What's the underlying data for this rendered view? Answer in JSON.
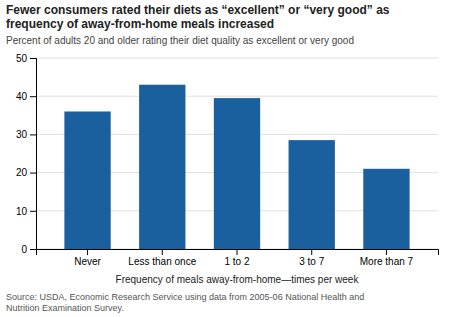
{
  "chart_data": {
    "type": "bar",
    "title": "Fewer consumers rated their diets as “excellent” or “very good” as\nfrequency of away-from-home meals increased",
    "subtitle": "Percent of adults 20 and older rating their diet quality as excellent or very good",
    "categories": [
      "Never",
      "Less than once",
      "1 to 2",
      "3 to 7",
      "More than 7"
    ],
    "values": [
      36,
      43,
      39.5,
      28.5,
      21
    ],
    "color": "#1A5F9E",
    "ylim": [
      0,
      50
    ],
    "yticks": [
      0,
      10,
      20,
      30,
      40,
      50
    ],
    "xlabel": "Frequency of meals away-from-home—times per week",
    "source": "Source: USDA, Economic Research Service using data from 2005-06 National Health and\nNutrition Examination Survey.",
    "grid": true
  }
}
